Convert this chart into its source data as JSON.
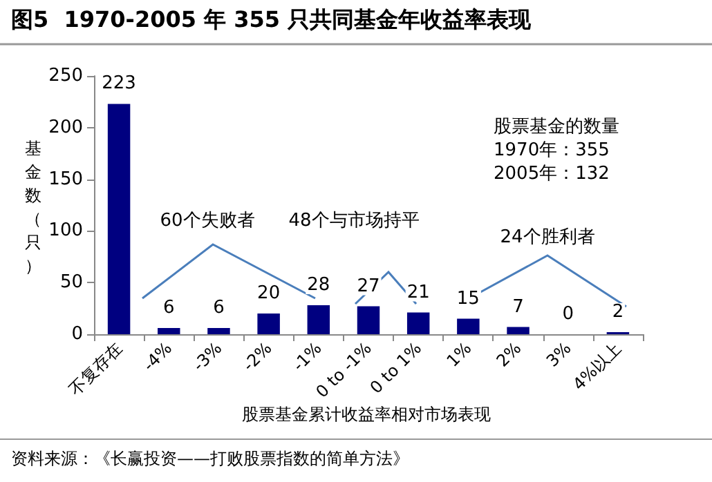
{
  "chart_data": {
    "type": "bar",
    "title": "图5  1970-2005 年 355 只共同基金年收益率表现",
    "xlabel": "股票基金累计收益率相对市场表现",
    "ylabel": "基金数（只）",
    "categories": [
      "不复存在",
      "-4%",
      "-3%",
      "-2%",
      "-1%",
      "0 to -1%",
      "0 to 1%",
      "1%",
      "2%",
      "3%",
      "4%以上"
    ],
    "values": [
      223,
      6,
      6,
      20,
      28,
      27,
      21,
      15,
      7,
      0,
      2
    ],
    "color": "#000080",
    "ylim": [
      0,
      250
    ],
    "yticks": [
      0,
      50,
      100,
      150,
      200,
      250
    ],
    "grid": false,
    "data_labels": true,
    "annotations": [
      "60个失败者",
      "48个与市场持平",
      "24个胜利者",
      "股票基金的数量",
      "1970年：355",
      "2005年：132",
      "资料来源：《长赢投资——打败股票指数的简单方法》"
    ]
  }
}
